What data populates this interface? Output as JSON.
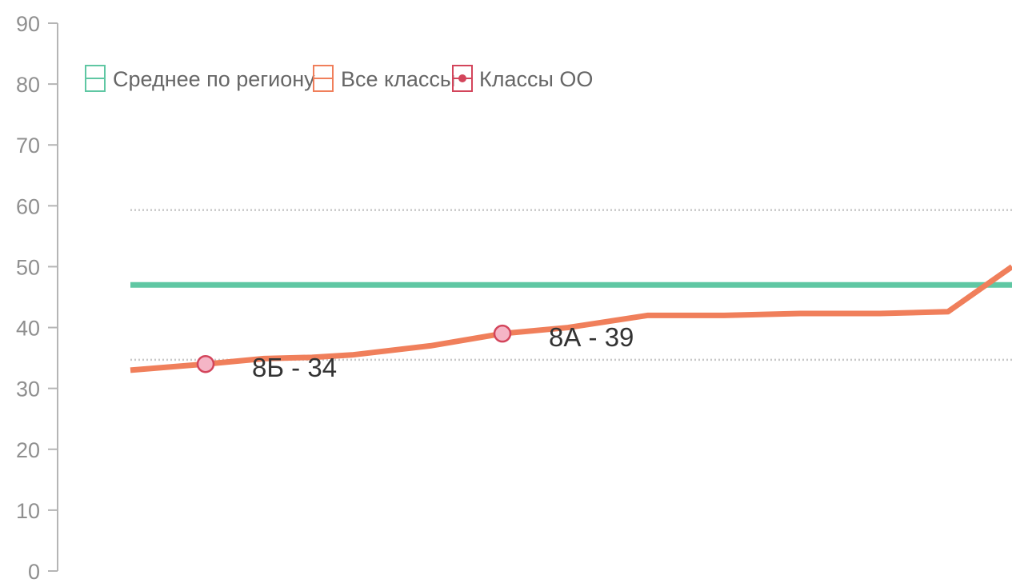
{
  "chart_data": {
    "type": "line",
    "ylim": [
      0,
      90
    ],
    "y_ticks": [
      "0",
      "10",
      "20",
      "30",
      "40",
      "50",
      "60",
      "70",
      "80",
      "90"
    ],
    "reference_lines": [
      {
        "name": "upper-dotted",
        "value": 59.3,
        "style": "dotted"
      },
      {
        "name": "lower-dotted",
        "value": 34.7,
        "style": "dotted"
      }
    ],
    "series": [
      {
        "name": "Среднее по региону",
        "color": "#5fc7a3",
        "style": "line",
        "values": [
          47,
          47
        ]
      },
      {
        "name": "Все классы",
        "color": "#f07f5b",
        "style": "line",
        "values": [
          33,
          34,
          34.9,
          35.1,
          35.5,
          37,
          39,
          40,
          42,
          42,
          42.3,
          42.3,
          42.6,
          50
        ]
      },
      {
        "name": "Классы ОО",
        "color": "#d3455b",
        "fill": "#f5b5c6",
        "style": "points",
        "points": [
          {
            "index": 1,
            "value": 34,
            "label": "8Б - 34"
          },
          {
            "index": 6,
            "value": 39,
            "label": "8А - 39"
          }
        ]
      }
    ],
    "legend": {
      "placement": "top-left",
      "items": [
        "Среднее по региону",
        "Все классы",
        "Классы ОО"
      ]
    },
    "grid": false
  }
}
